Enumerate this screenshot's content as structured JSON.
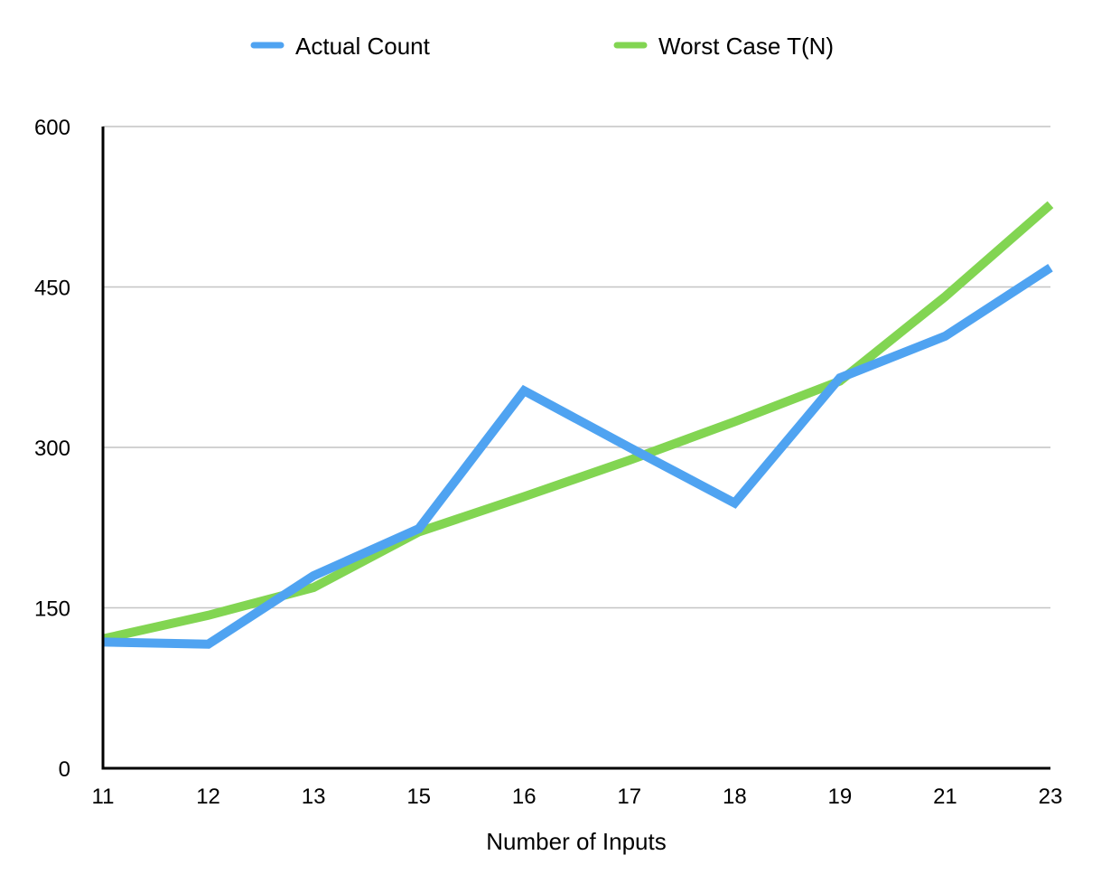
{
  "chart_data": {
    "type": "line",
    "title": "",
    "xlabel": "Number of Inputs",
    "ylabel": "",
    "categories": [
      "11",
      "12",
      "13",
      "15",
      "16",
      "17",
      "18",
      "19",
      "21",
      "23"
    ],
    "y_ticks": [
      "0",
      "150",
      "300",
      "450",
      "600"
    ],
    "ylim": [
      0,
      600
    ],
    "grid": "horizontal",
    "legend": "top-center",
    "series": [
      {
        "name": "Actual Count",
        "color": "#4fa3f1",
        "values": [
          118,
          116,
          180,
          224,
          353,
          300,
          248,
          365,
          404,
          468
        ]
      },
      {
        "name": "Worst Case T(N)",
        "color": "#82d552",
        "values": [
          121,
          143,
          169,
          221,
          254,
          288,
          324,
          362,
          441,
          527
        ]
      }
    ]
  }
}
